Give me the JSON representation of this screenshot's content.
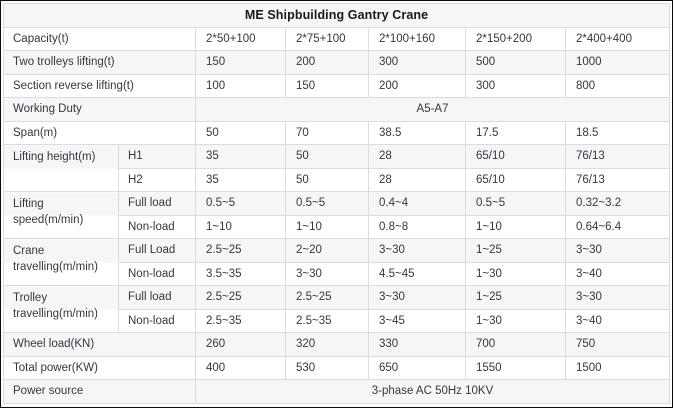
{
  "table": {
    "title": "ME Shipbuilding Gantry Crane",
    "working_duty": "A5-A7",
    "power_source": "3-phase AC 50Hz 10KV",
    "rows": [
      {
        "cells": [
          {
            "t": "ME Shipbuilding Gantry Crane",
            "cs": 7,
            "kind": "title"
          }
        ]
      },
      {
        "cells": [
          {
            "t": "Capacity(t)",
            "cs": 2,
            "kind": "label"
          },
          {
            "t": "2*50+100"
          },
          {
            "t": "2*75+100"
          },
          {
            "t": "2*100+160"
          },
          {
            "t": "2*150+200"
          },
          {
            "t": "2*400+400"
          }
        ]
      },
      {
        "cells": [
          {
            "t": "Two trolleys lifting(t)",
            "cs": 2,
            "kind": "label"
          },
          {
            "t": "150"
          },
          {
            "t": "200"
          },
          {
            "t": "300"
          },
          {
            "t": "500"
          },
          {
            "t": "1000"
          }
        ]
      },
      {
        "cells": [
          {
            "t": "Section reverse lifting(t)",
            "cs": 2,
            "kind": "label"
          },
          {
            "t": "100"
          },
          {
            "t": "150"
          },
          {
            "t": "200"
          },
          {
            "t": "300"
          },
          {
            "t": "800"
          }
        ]
      },
      {
        "cells": [
          {
            "t": "Working Duty",
            "cs": 2,
            "kind": "label"
          },
          {
            "t": "A5-A7",
            "cs": 5,
            "kind": "wide"
          }
        ]
      },
      {
        "cells": [
          {
            "t": "Span(m)",
            "cs": 2,
            "kind": "label"
          },
          {
            "t": "50"
          },
          {
            "t": "70"
          },
          {
            "t": "38.5"
          },
          {
            "t": "17.5"
          },
          {
            "t": "18.5"
          }
        ]
      },
      {
        "cells": [
          {
            "t": "Lifting height(m)",
            "rs": 2,
            "kind": "mlabel"
          },
          {
            "t": "H1",
            "kind": "sub"
          },
          {
            "t": "35"
          },
          {
            "t": "50"
          },
          {
            "t": "28"
          },
          {
            "t": "65/10"
          },
          {
            "t": "76/13"
          }
        ]
      },
      {
        "cells": [
          {
            "t": "H2",
            "kind": "sub"
          },
          {
            "t": "35"
          },
          {
            "t": "50"
          },
          {
            "t": "28"
          },
          {
            "t": "65/10"
          },
          {
            "t": "76/13"
          }
        ]
      },
      {
        "cells": [
          {
            "t": "Lifting speed(m/min)",
            "rs": 2,
            "kind": "mlabel"
          },
          {
            "t": "Full load",
            "kind": "sub"
          },
          {
            "t": "0.5~5"
          },
          {
            "t": "0.5~5"
          },
          {
            "t": "0.4~4"
          },
          {
            "t": "0.5~5"
          },
          {
            "t": "0.32~3.2"
          }
        ]
      },
      {
        "cells": [
          {
            "t": "Non-load",
            "kind": "sub"
          },
          {
            "t": "1~10"
          },
          {
            "t": "1~10"
          },
          {
            "t": "0.8~8"
          },
          {
            "t": "1~10"
          },
          {
            "t": "0.64~6.4"
          }
        ]
      },
      {
        "cells": [
          {
            "t": "Crane travelling(m/min)",
            "rs": 2,
            "kind": "mlabel"
          },
          {
            "t": "Full Load",
            "kind": "sub"
          },
          {
            "t": "2.5~25"
          },
          {
            "t": "2~20"
          },
          {
            "t": "3~30"
          },
          {
            "t": "1~25"
          },
          {
            "t": "3~30"
          }
        ]
      },
      {
        "cells": [
          {
            "t": "Non-load",
            "kind": "sub"
          },
          {
            "t": "3.5~35"
          },
          {
            "t": "3~30"
          },
          {
            "t": "4.5~45"
          },
          {
            "t": "1~30"
          },
          {
            "t": "3~40"
          }
        ]
      },
      {
        "cells": [
          {
            "t": "Trolley travelling(m/min)",
            "rs": 2,
            "kind": "mlabel"
          },
          {
            "t": "Full load",
            "kind": "sub"
          },
          {
            "t": "2.5~25"
          },
          {
            "t": "2.5~25"
          },
          {
            "t": "3~30"
          },
          {
            "t": "1~25"
          },
          {
            "t": "3~30"
          }
        ]
      },
      {
        "cells": [
          {
            "t": "Non-load",
            "kind": "sub"
          },
          {
            "t": "2.5~35"
          },
          {
            "t": "2.5~35"
          },
          {
            "t": "3~45"
          },
          {
            "t": "1~30"
          },
          {
            "t": "3~40"
          }
        ]
      },
      {
        "cells": [
          {
            "t": "Wheel load(KN)",
            "cs": 2,
            "kind": "label"
          },
          {
            "t": "260"
          },
          {
            "t": "320"
          },
          {
            "t": "330"
          },
          {
            "t": "700"
          },
          {
            "t": "750"
          }
        ]
      },
      {
        "cells": [
          {
            "t": "Total power(KW)",
            "cs": 2,
            "kind": "label"
          },
          {
            "t": "400"
          },
          {
            "t": "530"
          },
          {
            "t": "650"
          },
          {
            "t": "1550"
          },
          {
            "t": "1500"
          }
        ]
      },
      {
        "cells": [
          {
            "t": "Power source",
            "cs": 2,
            "kind": "label"
          },
          {
            "t": "3-phase AC 50Hz 10KV",
            "cs": 5,
            "kind": "wide"
          }
        ]
      }
    ],
    "colors": {
      "stripe_bg": "#f5f6f8",
      "cell_border": "#d9dde2",
      "text": "#33383f",
      "title_text": "#17191d",
      "outer_frame": "#0b0b0b"
    }
  }
}
